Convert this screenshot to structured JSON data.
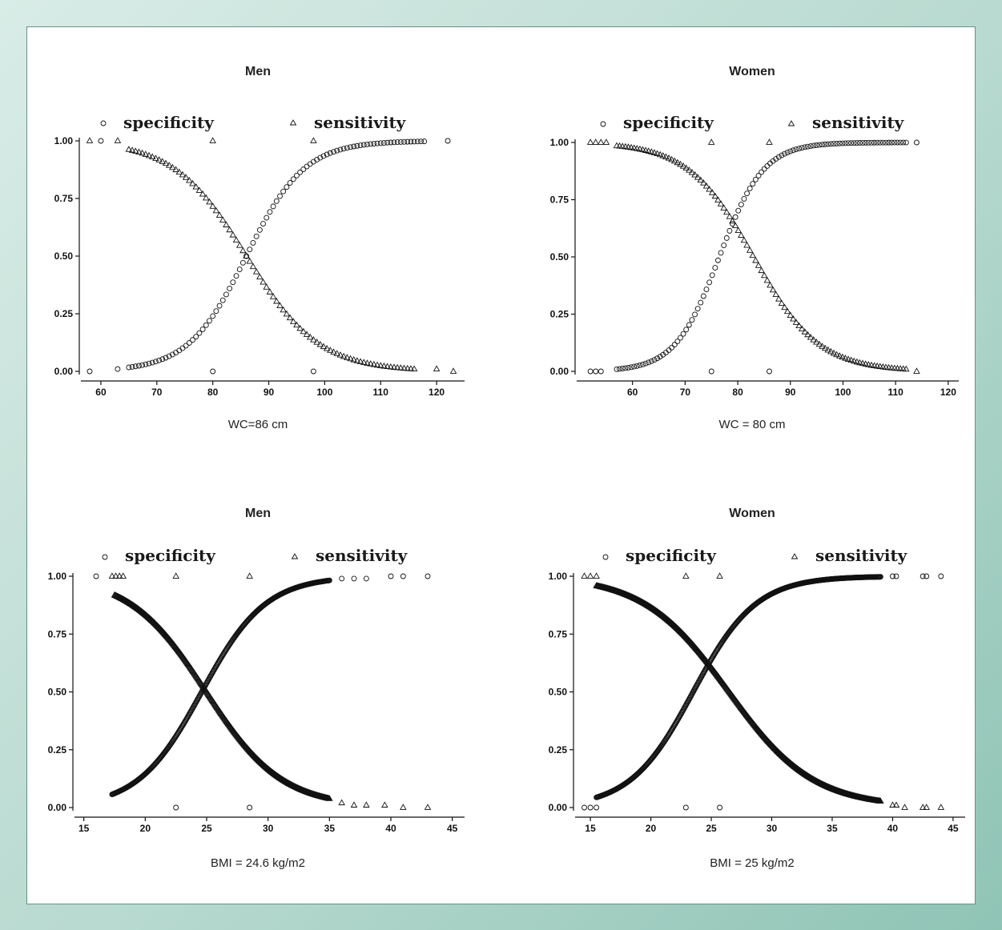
{
  "chart_data": [
    {
      "type": "scatter",
      "title": "Men",
      "xlabel": "WC=86 cm",
      "ylabel": "",
      "xlim": [
        57,
        125
      ],
      "ylim": [
        0,
        1
      ],
      "xticks": [
        60,
        70,
        80,
        90,
        100,
        110,
        120
      ],
      "yticks": [
        "0.00",
        "0.25",
        "0.50",
        "0.75",
        "1.00"
      ],
      "legend": [
        "specificity",
        "sensitivity"
      ],
      "series": [
        {
          "name": "specificity",
          "marker": "circle",
          "x": [
            58,
            60,
            63,
            80,
            98,
            122
          ],
          "y": [
            0,
            1,
            0.01,
            0,
            0,
            1
          ],
          "curve": {
            "mid": 86,
            "scale": 5.2,
            "min": 65,
            "max": 118,
            "step": 0.6,
            "increasing": true
          }
        },
        {
          "name": "sensitivity",
          "marker": "triangle",
          "x": [
            58,
            63,
            80,
            98,
            120,
            123
          ],
          "y": [
            1,
            1,
            1,
            1,
            0.01,
            0
          ],
          "curve": {
            "mid": 86,
            "scale": 6.5,
            "min": 65,
            "max": 116,
            "step": 0.6,
            "increasing": false
          }
        }
      ]
    },
    {
      "type": "scatter",
      "title": "Women",
      "xlabel": "WC = 80 cm",
      "ylabel": "",
      "xlim": [
        50,
        122
      ],
      "ylim": [
        0,
        1
      ],
      "xticks": [
        60,
        70,
        80,
        90,
        100,
        110,
        120
      ],
      "yticks": [
        "0.00",
        "0.25",
        "0.50",
        "0.75",
        "1.00"
      ],
      "legend": [
        "specificity",
        "sensitivity"
      ],
      "series": [
        {
          "name": "specificity",
          "marker": "circle",
          "x": [
            52,
            53,
            54,
            75,
            86,
            114
          ],
          "y": [
            0,
            0,
            0,
            0,
            0,
            1
          ],
          "curve": {
            "mid": 76.5,
            "scale": 4.2,
            "min": 57,
            "max": 112,
            "step": 0.55,
            "increasing": true
          }
        },
        {
          "name": "sensitivity",
          "marker": "triangle",
          "x": [
            52,
            53,
            54,
            55,
            75,
            86,
            114
          ],
          "y": [
            1,
            1,
            1,
            1,
            1,
            1,
            0
          ],
          "curve": {
            "mid": 83,
            "scale": 6.2,
            "min": 57,
            "max": 112,
            "step": 0.55,
            "increasing": false
          }
        }
      ]
    },
    {
      "type": "scatter",
      "title": "Men",
      "xlabel": "BMI = 24.6 kg/m2",
      "ylabel": "",
      "xlim": [
        14.5,
        46
      ],
      "ylim": [
        0,
        1
      ],
      "xticks": [
        15,
        20,
        25,
        30,
        35,
        40,
        45
      ],
      "yticks": [
        "0.00",
        "0.25",
        "0.50",
        "0.75",
        "1.00"
      ],
      "legend": [
        "specificity",
        "sensitivity"
      ],
      "series": [
        {
          "name": "specificity",
          "marker": "circle",
          "x": [
            16,
            22.5,
            28.5,
            36,
            37,
            38,
            40,
            41,
            43
          ],
          "y": [
            1,
            0,
            0,
            0.99,
            0.99,
            0.99,
            1,
            1,
            1
          ],
          "curve": {
            "mid": 24.6,
            "scale": 2.6,
            "min": 17.3,
            "max": 35,
            "step": 0.05,
            "increasing": true
          }
        },
        {
          "name": "sensitivity",
          "marker": "triangle",
          "x": [
            17.3,
            17.6,
            17.9,
            18.2,
            22.5,
            28.5,
            36,
            37,
            38,
            39.5,
            41,
            43
          ],
          "y": [
            1,
            1,
            1,
            1,
            1,
            1,
            0.02,
            0.01,
            0.01,
            0.01,
            0,
            0
          ],
          "curve": {
            "mid": 25,
            "scale": 3.1,
            "min": 17.5,
            "max": 35,
            "step": 0.05,
            "increasing": false
          }
        }
      ]
    },
    {
      "type": "scatter",
      "title": "Women",
      "xlabel": "BMI = 25 kg/m2",
      "ylabel": "",
      "xlim": [
        14,
        46
      ],
      "ylim": [
        0,
        1
      ],
      "xticks": [
        15,
        20,
        25,
        30,
        35,
        40,
        45
      ],
      "yticks": [
        "0.00",
        "0.25",
        "0.50",
        "0.75",
        "1.00"
      ],
      "legend": [
        "specificity",
        "sensitivity"
      ],
      "series": [
        {
          "name": "specificity",
          "marker": "circle",
          "x": [
            14.5,
            15,
            15.5,
            22.9,
            25.7,
            40,
            40.3,
            42.5,
            42.8,
            44
          ],
          "y": [
            0,
            0,
            0,
            0,
            0,
            1,
            1,
            1,
            1,
            1
          ],
          "curve": {
            "mid": 23.5,
            "scale": 2.6,
            "min": 15.5,
            "max": 39,
            "step": 0.05,
            "increasing": true
          }
        },
        {
          "name": "sensitivity",
          "marker": "triangle",
          "x": [
            14.5,
            15,
            15.5,
            22.9,
            25.7,
            40,
            40.3,
            41,
            42.5,
            42.8,
            44
          ],
          "y": [
            1,
            1,
            1,
            1,
            1,
            0.01,
            0.01,
            0,
            0,
            0,
            0
          ],
          "curve": {
            "mid": 26.5,
            "scale": 3.5,
            "min": 15.5,
            "max": 39,
            "step": 0.05,
            "increasing": false
          }
        }
      ]
    }
  ]
}
